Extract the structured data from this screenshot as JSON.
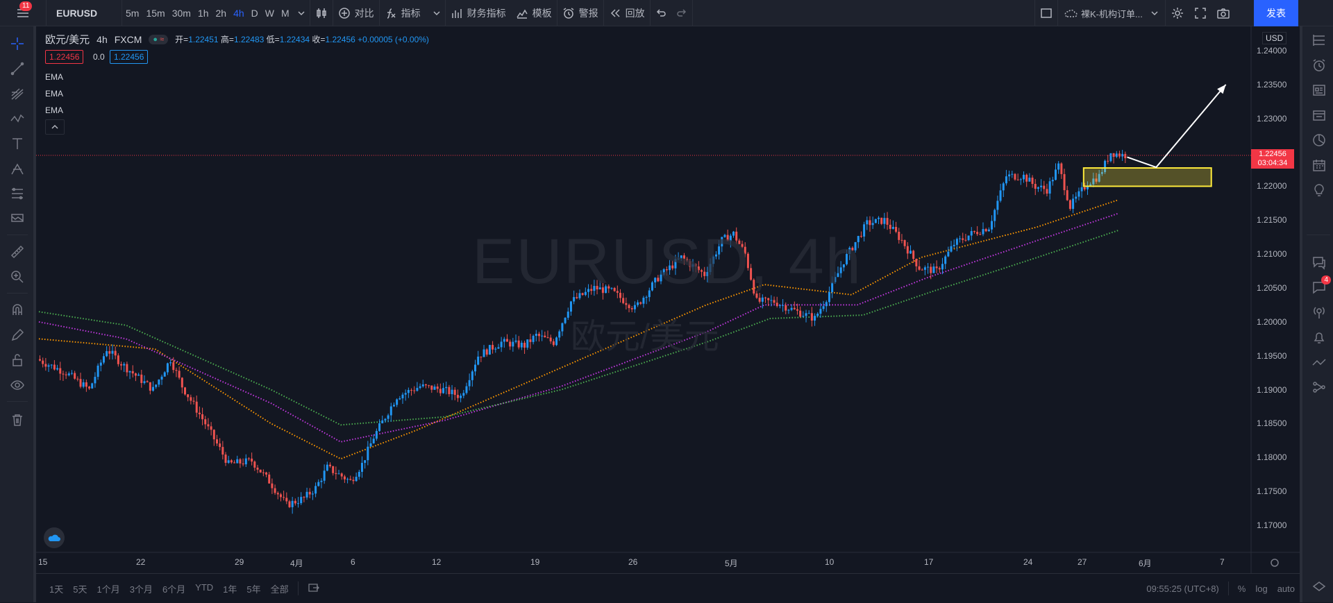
{
  "topbar": {
    "notification_count": "11",
    "symbol": "EURUSD",
    "intervals": [
      "5m",
      "15m",
      "30m",
      "1h",
      "2h",
      "4h",
      "D",
      "W",
      "M"
    ],
    "active_interval": "4h",
    "compare_label": "对比",
    "indicators_label": "指标",
    "financials_label": "财务指标",
    "templates_label": "模板",
    "alert_label": "警报",
    "replay_label": "回放",
    "layout_name": "裸K-机构订单...",
    "publish_label": "发表"
  },
  "legend": {
    "title": "欧元/美元",
    "interval": "4h",
    "exchange": "FXCM",
    "open_label": "开=",
    "open": "1.22451",
    "high_label": "高=",
    "high": "1.22483",
    "low_label": "低=",
    "low": "1.22434",
    "close_label": "收=",
    "close": "1.22456",
    "change": "+0.00005 (+0.00%)",
    "sell_price": "1.22456",
    "spread": "0.0",
    "buy_price": "1.22456",
    "ema_labels": [
      "EMA",
      "EMA",
      "EMA"
    ]
  },
  "watermark": {
    "symbol": "EURUSD, 4h",
    "name": "欧元/美元"
  },
  "price_scale": {
    "currency": "USD",
    "labels": [
      "1.24000",
      "1.23500",
      "1.23000",
      "1.22500",
      "1.22000",
      "1.21500",
      "1.21000",
      "1.20500",
      "1.20000",
      "1.19500",
      "1.19000",
      "1.18500",
      "1.18000",
      "1.17500",
      "1.17000"
    ],
    "last_price": "1.22456",
    "countdown": "03:04:34"
  },
  "time_scale": {
    "labels": [
      "15",
      "22",
      "29",
      "4月",
      "6",
      "12",
      "19",
      "26",
      "5月",
      "10",
      "17",
      "24",
      "27",
      "6月",
      "7"
    ]
  },
  "bottombar": {
    "ranges": [
      "1天",
      "5天",
      "1个月",
      "3个月",
      "6个月",
      "YTD",
      "1年",
      "5年",
      "全部"
    ],
    "time": "09:55:25 (UTC+8)",
    "percent": "%",
    "log": "log",
    "auto": "auto"
  },
  "right_panel": {
    "chat_badge": "4"
  },
  "colors": {
    "up": "#2196f3",
    "down": "#ef5350",
    "ema_fast": "#ff9800",
    "ema_mid": "#c238e0",
    "ema_slow": "#4caf50",
    "zone": "#ffeb3b",
    "background": "#131722"
  },
  "chart_data": {
    "type": "candlestick",
    "symbol": "EURUSD",
    "interval": "4h",
    "ylim": [
      1.1655,
      1.2435
    ],
    "y_ticks": [
      1.24,
      1.235,
      1.23,
      1.225,
      1.22,
      1.215,
      1.21,
      1.205,
      1.2,
      1.195,
      1.19,
      1.185,
      1.18,
      1.175,
      1.17
    ],
    "price_path": [
      [
        0,
        1.1945
      ],
      [
        10,
        1.1925
      ],
      [
        18,
        1.19
      ],
      [
        24,
        1.196
      ],
      [
        30,
        1.1935
      ],
      [
        40,
        1.19
      ],
      [
        46,
        1.1945
      ],
      [
        50,
        1.1905
      ],
      [
        58,
        1.185
      ],
      [
        66,
        1.179
      ],
      [
        74,
        1.1795
      ],
      [
        80,
        1.1765
      ],
      [
        86,
        1.173
      ],
      [
        92,
        1.174
      ],
      [
        96,
        1.1755
      ],
      [
        100,
        1.1785
      ],
      [
        104,
        1.1775
      ],
      [
        108,
        1.1765
      ],
      [
        112,
        1.179
      ],
      [
        116,
        1.183
      ],
      [
        124,
        1.189
      ],
      [
        132,
        1.1905
      ],
      [
        140,
        1.19
      ],
      [
        146,
        1.189
      ],
      [
        152,
        1.195
      ],
      [
        160,
        1.197
      ],
      [
        168,
        1.1965
      ],
      [
        172,
        1.198
      ],
      [
        178,
        1.197
      ],
      [
        184,
        1.203
      ],
      [
        192,
        1.205
      ],
      [
        198,
        1.2045
      ],
      [
        206,
        1.202
      ],
      [
        214,
        1.2065
      ],
      [
        222,
        1.2095
      ],
      [
        230,
        1.207
      ],
      [
        236,
        1.212
      ],
      [
        240,
        1.213
      ],
      [
        244,
        1.21
      ],
      [
        248,
        1.203
      ],
      [
        254,
        1.203
      ],
      [
        262,
        1.2015
      ],
      [
        268,
        1.2005
      ],
      [
        272,
        1.2035
      ],
      [
        278,
        1.209
      ],
      [
        286,
        1.2145
      ],
      [
        292,
        1.215
      ],
      [
        298,
        1.212
      ],
      [
        304,
        1.208
      ],
      [
        310,
        1.2075
      ],
      [
        316,
        1.2115
      ],
      [
        322,
        1.213
      ],
      [
        328,
        1.214
      ],
      [
        334,
        1.2215
      ],
      [
        340,
        1.2215
      ],
      [
        344,
        1.22
      ],
      [
        348,
        1.2195
      ],
      [
        352,
        1.223
      ],
      [
        356,
        1.217
      ],
      [
        362,
        1.2205
      ],
      [
        366,
        1.2215
      ],
      [
        370,
        1.225
      ],
      [
        374,
        1.2246
      ]
    ],
    "ema_series": [
      {
        "color": "#ff9800",
        "points": [
          [
            0,
            1.1975
          ],
          [
            40,
            1.196
          ],
          [
            80,
            1.185
          ],
          [
            104,
            1.1798
          ],
          [
            130,
            1.184
          ],
          [
            176,
            1.1925
          ],
          [
            230,
            1.2025
          ],
          [
            250,
            1.2055
          ],
          [
            280,
            1.204
          ],
          [
            304,
            1.2095
          ],
          [
            344,
            1.214
          ],
          [
            372,
            1.218
          ]
        ]
      },
      {
        "color": "#c238e0",
        "points": [
          [
            0,
            1.2
          ],
          [
            30,
            1.1975
          ],
          [
            80,
            1.188
          ],
          [
            104,
            1.1823
          ],
          [
            140,
            1.1855
          ],
          [
            180,
            1.1905
          ],
          [
            230,
            1.1985
          ],
          [
            250,
            1.2025
          ],
          [
            282,
            1.2025
          ],
          [
            306,
            1.2065
          ],
          [
            344,
            1.212
          ],
          [
            372,
            1.216
          ]
        ]
      },
      {
        "color": "#4caf50",
        "points": [
          [
            0,
            1.2015
          ],
          [
            30,
            1.1995
          ],
          [
            80,
            1.19
          ],
          [
            104,
            1.1848
          ],
          [
            140,
            1.186
          ],
          [
            180,
            1.19
          ],
          [
            230,
            1.197
          ],
          [
            252,
            1.2005
          ],
          [
            284,
            1.201
          ],
          [
            308,
            1.2045
          ],
          [
            344,
            1.2095
          ],
          [
            372,
            1.2135
          ]
        ]
      }
    ],
    "zone": {
      "x0": 360,
      "x1": 404,
      "y_low": 1.22,
      "y_high": 1.2227
    },
    "arrow": [
      [
        375,
        1.2243
      ],
      [
        385,
        1.2228
      ],
      [
        409,
        1.235
      ]
    ],
    "last_price": 1.22456,
    "n_bars": 375
  }
}
